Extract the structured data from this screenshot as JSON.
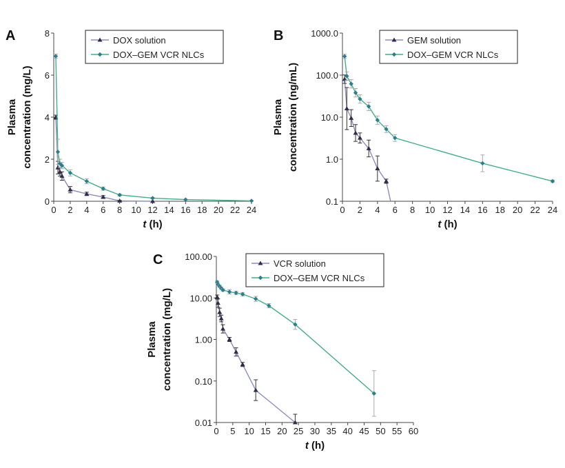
{
  "colors": {
    "solution_line": "#8c8cc0",
    "solution_marker": "#2d2d4a",
    "nlc_line": "#3fae8a",
    "nlc_marker": "#2a7f8e"
  },
  "chart_data": [
    {
      "panel": "A",
      "type": "line",
      "yscale": "linear",
      "xlabel_italic": "t",
      "xlabel_rest": " (h)",
      "ylabel": [
        "Plasma",
        "concentration (mg/L)"
      ],
      "xlim": [
        0,
        24
      ],
      "ylim": [
        0,
        8
      ],
      "xticks": [
        0,
        2,
        4,
        6,
        8,
        10,
        12,
        14,
        16,
        18,
        20,
        22,
        24
      ],
      "yticks": [
        0,
        2,
        4,
        6,
        8
      ],
      "ytick_labels": [
        "0",
        "2",
        "4",
        "6",
        "8"
      ],
      "legend": "top-center",
      "series": [
        {
          "name": "DOX solution",
          "marker": "triangle",
          "x": [
            0.25,
            0.5,
            0.75,
            1,
            2,
            4,
            6,
            8,
            12
          ],
          "y": [
            4.0,
            1.6,
            1.4,
            1.2,
            0.55,
            0.35,
            0.2,
            0.02,
            0
          ],
          "err": [
            0.1,
            0.3,
            0.2,
            0.2,
            0.15,
            0.08,
            0.07,
            0.02,
            0
          ]
        },
        {
          "name": "DOX–GEM VCR NLCs",
          "marker": "diamond",
          "x": [
            0.25,
            0.5,
            0.75,
            1,
            2,
            4,
            6,
            8,
            12,
            16,
            24
          ],
          "y": [
            6.9,
            2.35,
            1.8,
            1.7,
            1.35,
            0.95,
            0.6,
            0.3,
            0.15,
            0.08,
            0.02
          ],
          "err": [
            0.1,
            0.6,
            0.2,
            0.15,
            0.15,
            0.12,
            0.08,
            0.05,
            0.03,
            0.02,
            0.01
          ]
        }
      ]
    },
    {
      "panel": "B",
      "type": "line",
      "yscale": "log",
      "xlabel_italic": "t",
      "xlabel_rest": " (h)",
      "ylabel": [
        "Plasma",
        "concentration (ng/mL)"
      ],
      "xlim": [
        0,
        24
      ],
      "ylim": [
        0.1,
        1000
      ],
      "xticks": [
        0,
        2,
        4,
        6,
        8,
        10,
        12,
        14,
        16,
        18,
        20,
        22,
        24
      ],
      "yticks": [
        0.1,
        1,
        10,
        100,
        1000
      ],
      "ytick_labels": [
        "0.1",
        "1.0",
        "10.0",
        "100.0",
        "1000.0"
      ],
      "legend": "top-center",
      "series": [
        {
          "name": "GEM solution",
          "marker": "triangle",
          "x": [
            0.25,
            0.5,
            1,
            1.5,
            2,
            3,
            4,
            5,
            5.5
          ],
          "y": [
            80,
            16,
            9.5,
            4.2,
            3.2,
            1.8,
            0.6,
            0.3,
            0.1
          ],
          "err": [
            0.1,
            0.5,
            0.2,
            0.2,
            0.12,
            0.2,
            0.3,
            0.05,
            0
          ]
        },
        {
          "name": "DOX–GEM VCR NLCs",
          "marker": "diamond",
          "x": [
            0.25,
            0.5,
            1,
            1.5,
            2,
            3,
            4,
            5,
            6,
            16,
            24
          ],
          "y": [
            280,
            95,
            62,
            38,
            27,
            18,
            8.5,
            5.2,
            3.2,
            0.8,
            0.3
          ],
          "err": [
            0.05,
            0.1,
            0.1,
            0.1,
            0.1,
            0.1,
            0.1,
            0.08,
            0.08,
            0.2,
            0.03
          ]
        }
      ]
    },
    {
      "panel": "C",
      "type": "line",
      "yscale": "log",
      "xlabel_italic": "t",
      "xlabel_rest": " (h)",
      "ylabel": [
        "Plasma",
        "concentration (mg/L)"
      ],
      "xlim": [
        0,
        60
      ],
      "ylim": [
        0.01,
        100
      ],
      "xticks": [
        0,
        5,
        10,
        15,
        20,
        25,
        30,
        35,
        40,
        45,
        50,
        55,
        60
      ],
      "yticks": [
        0.01,
        0.1,
        1,
        10,
        100
      ],
      "ytick_labels": [
        "0.01",
        "0.10",
        "1.00",
        "10.00",
        "100.00"
      ],
      "legend": "top-center",
      "series": [
        {
          "name": "VCR solution",
          "marker": "triangle",
          "x": [
            0.25,
            0.5,
            1,
            1.5,
            2,
            4,
            6,
            8,
            12,
            24
          ],
          "y": [
            10.5,
            7.5,
            4.5,
            3.2,
            1.8,
            1.0,
            0.5,
            0.25,
            0.06,
            0.01
          ],
          "err": [
            0.05,
            0.1,
            0.1,
            0.08,
            0.1,
            0.05,
            0.1,
            0.05,
            0.25,
            0.2
          ]
        },
        {
          "name": "DOX–GEM VCR NLCs",
          "marker": "diamond",
          "x": [
            0.25,
            0.5,
            1,
            1.5,
            2,
            4,
            6,
            8,
            12,
            16,
            24,
            48
          ],
          "y": [
            24,
            21,
            19,
            17,
            15.5,
            14,
            13.2,
            12.3,
            9.5,
            6.5,
            2.3,
            0.05
          ],
          "err": [
            0.03,
            0.03,
            0.03,
            0.03,
            0.03,
            0.05,
            0.04,
            0.04,
            0.06,
            0.05,
            0.12,
            0.55
          ]
        }
      ]
    }
  ]
}
